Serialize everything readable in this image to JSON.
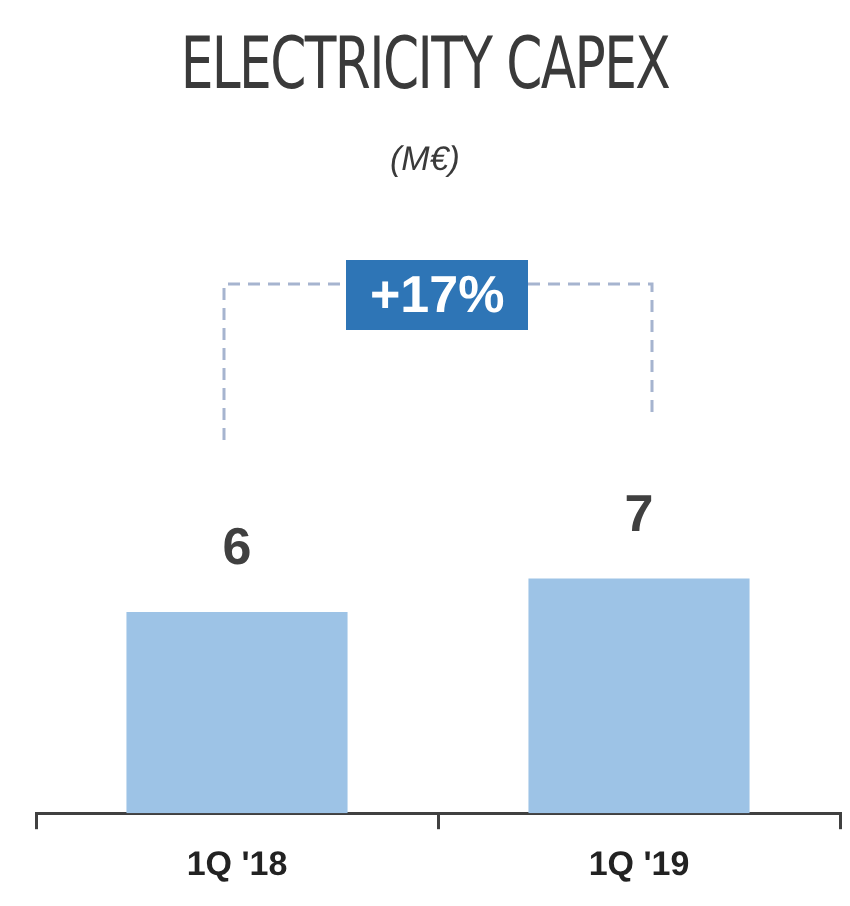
{
  "chart_data": {
    "type": "bar",
    "title": "ELECTRICITY CAPEX",
    "subtitle": "(M€)",
    "categories": [
      "1Q '18",
      "1Q '19"
    ],
    "values": [
      6,
      7
    ],
    "color": "#9dc3e6",
    "data_labels": true,
    "annotations": [
      "+17%"
    ]
  }
}
